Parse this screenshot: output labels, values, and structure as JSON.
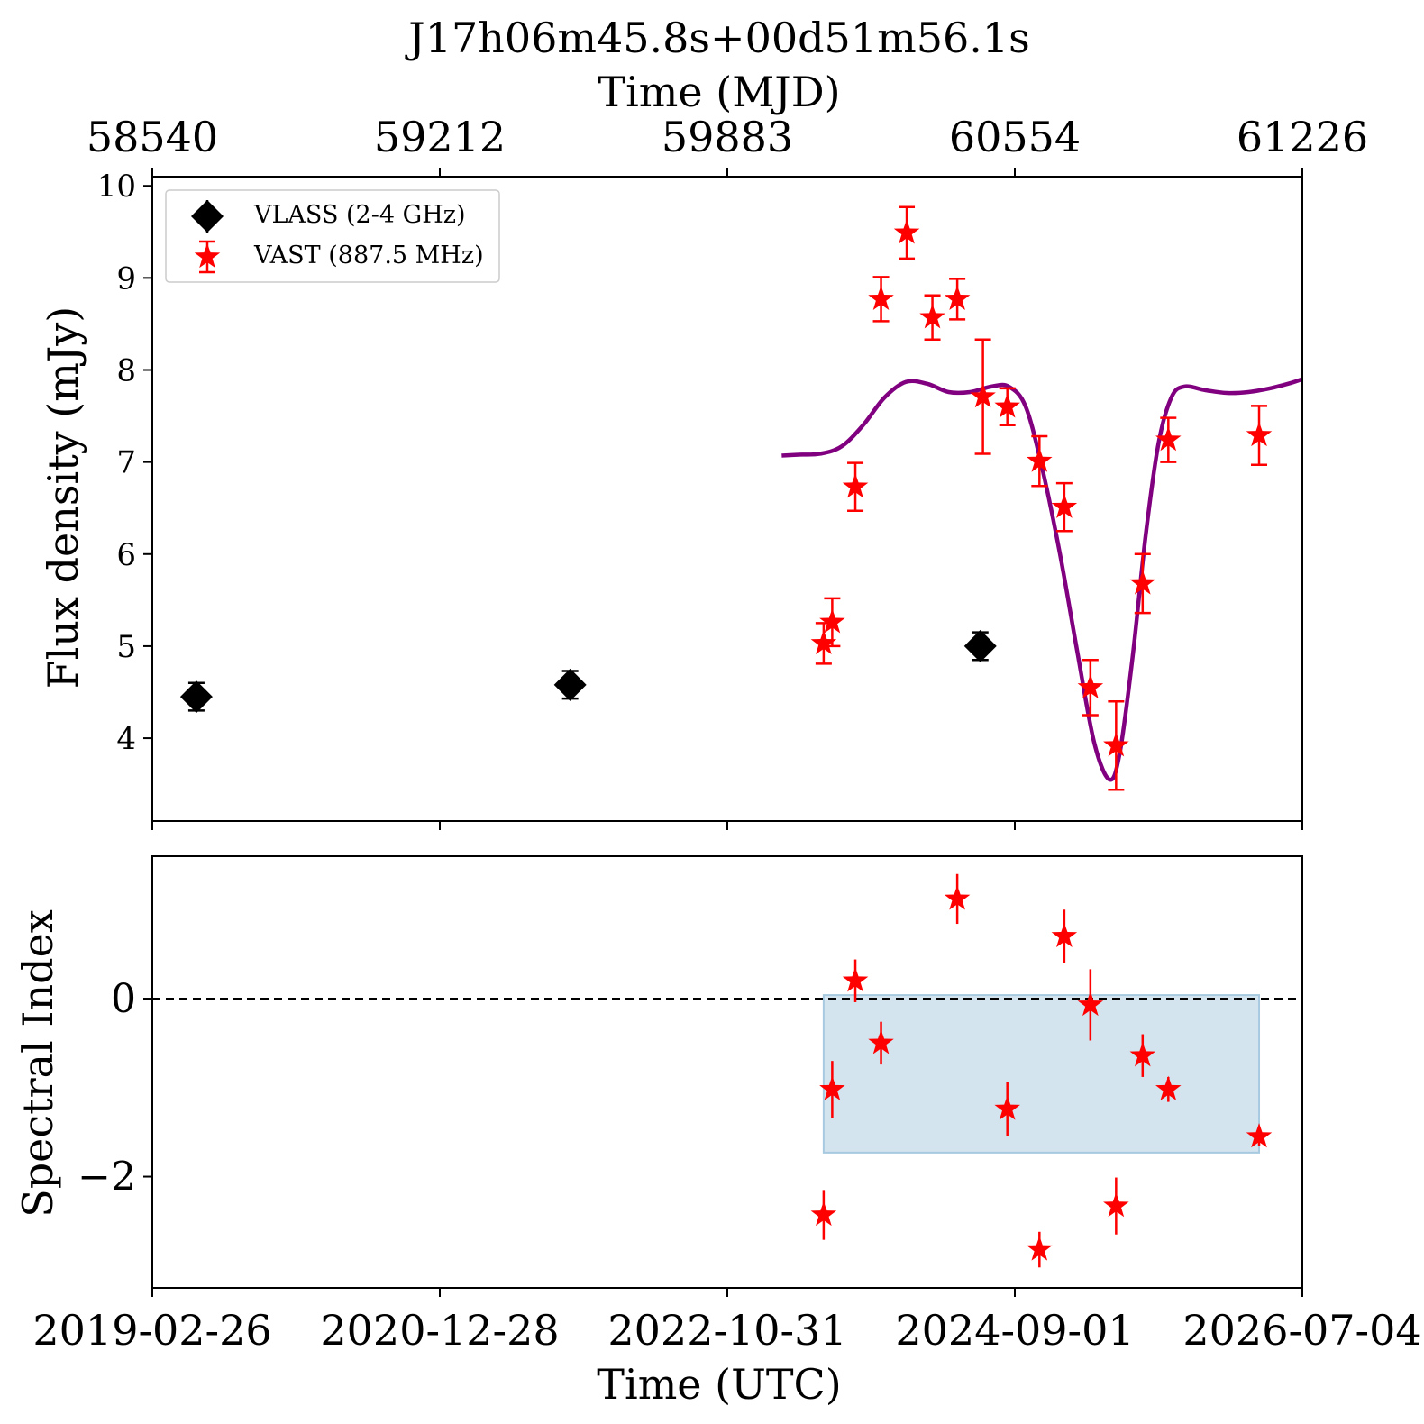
{
  "chart_data": {
    "title": "J17h06m45.8s+00d51m56.1s",
    "top_axis_label": "Time (MJD)",
    "top_ticks": [
      "58540",
      "59212",
      "59883",
      "60554",
      "61226"
    ],
    "xlabel": "Time (UTC)",
    "bottom_ticks": [
      "2019-02-26",
      "2020-12-28",
      "2022-10-31",
      "2024-09-01",
      "2026-07-04"
    ],
    "xlim": [
      58540,
      61226
    ],
    "panels": [
      {
        "type": "scatter",
        "ylabel": "Flux density (mJy)",
        "ylim": [
          3.1,
          10.1
        ],
        "yticks": [
          4,
          5,
          6,
          7,
          8,
          9,
          10
        ],
        "legend_position": "upper-left",
        "series": [
          {
            "name": "VLASS (2-4 GHz)",
            "marker": "diamond",
            "color": "#000000",
            "points": [
              {
                "x": 58643,
                "y": 4.45,
                "err": 0.15
              },
              {
                "x": 59516,
                "y": 4.58,
                "err": 0.15
              },
              {
                "x": 60474,
                "y": 5.0,
                "err": 0.15
              }
            ]
          },
          {
            "name": "VAST (887.5 MHz)",
            "marker": "star",
            "color": "#ff0000",
            "points": [
              {
                "x": 60108,
                "y": 5.03,
                "err": 0.22
              },
              {
                "x": 60128,
                "y": 5.26,
                "err": 0.26
              },
              {
                "x": 60182,
                "y": 6.73,
                "err": 0.26
              },
              {
                "x": 60242,
                "y": 8.77,
                "err": 0.24
              },
              {
                "x": 60302,
                "y": 9.49,
                "err": 0.28
              },
              {
                "x": 60362,
                "y": 8.57,
                "err": 0.24
              },
              {
                "x": 60420,
                "y": 8.77,
                "err": 0.22
              },
              {
                "x": 60480,
                "y": 7.71,
                "err": 0.62
              },
              {
                "x": 60537,
                "y": 7.6,
                "err": 0.2
              },
              {
                "x": 60612,
                "y": 7.01,
                "err": 0.27
              },
              {
                "x": 60670,
                "y": 6.51,
                "err": 0.26
              },
              {
                "x": 60731,
                "y": 4.55,
                "err": 0.3
              },
              {
                "x": 60791,
                "y": 3.92,
                "err": 0.48
              },
              {
                "x": 60853,
                "y": 5.68,
                "err": 0.32
              },
              {
                "x": 60913,
                "y": 7.24,
                "err": 0.24
              },
              {
                "x": 61125,
                "y": 7.29,
                "err": 0.32
              }
            ]
          },
          {
            "kind": "line",
            "color": "#800080",
            "points": [
              [
                60010,
                7.07
              ],
              [
                60050,
                7.08
              ],
              [
                60100,
                7.09
              ],
              [
                60150,
                7.17
              ],
              [
                60200,
                7.4
              ],
              [
                60250,
                7.7
              ],
              [
                60300,
                7.87
              ],
              [
                60350,
                7.85
              ],
              [
                60400,
                7.76
              ],
              [
                60450,
                7.76
              ],
              [
                60500,
                7.82
              ],
              [
                60540,
                7.82
              ],
              [
                60580,
                7.6
              ],
              [
                60620,
                6.9
              ],
              [
                60660,
                6.0
              ],
              [
                60700,
                4.95
              ],
              [
                60740,
                3.95
              ],
              [
                60776,
                3.55
              ],
              [
                60800,
                3.85
              ],
              [
                60830,
                4.9
              ],
              [
                60860,
                6.2
              ],
              [
                60890,
                7.2
              ],
              [
                60920,
                7.7
              ],
              [
                60950,
                7.82
              ],
              [
                61000,
                7.78
              ],
              [
                61050,
                7.75
              ],
              [
                61100,
                7.76
              ],
              [
                61150,
                7.8
              ],
              [
                61200,
                7.86
              ],
              [
                61226,
                7.9
              ]
            ]
          }
        ]
      },
      {
        "type": "scatter",
        "ylabel": "Spectral Index",
        "ylim": [
          -3.25,
          1.6
        ],
        "yticks": [
          -2,
          0
        ],
        "reference_line": 0,
        "band": {
          "x": [
            60108,
            61125
          ],
          "y": [
            -1.73,
            0.04
          ],
          "color": "#a8cae0"
        },
        "series": [
          {
            "marker": "star",
            "color": "#ff0000",
            "points": [
              {
                "x": 60108,
                "y": -2.43,
                "err": 0.28
              },
              {
                "x": 60128,
                "y": -1.02,
                "err": 0.32
              },
              {
                "x": 60182,
                "y": 0.2,
                "err": 0.24
              },
              {
                "x": 60242,
                "y": -0.5,
                "err": 0.24
              },
              {
                "x": 60420,
                "y": 1.12,
                "err": 0.28
              },
              {
                "x": 60537,
                "y": -1.24,
                "err": 0.3
              },
              {
                "x": 60612,
                "y": -2.82,
                "err": 0.2
              },
              {
                "x": 60670,
                "y": 0.7,
                "err": 0.3
              },
              {
                "x": 60731,
                "y": -0.07,
                "err": 0.4
              },
              {
                "x": 60791,
                "y": -2.33,
                "err": 0.32
              },
              {
                "x": 60853,
                "y": -0.64,
                "err": 0.24
              },
              {
                "x": 60913,
                "y": -1.02,
                "err": 0.14
              },
              {
                "x": 61125,
                "y": -1.55,
                "err": 0.1
              }
            ]
          }
        ]
      }
    ]
  }
}
